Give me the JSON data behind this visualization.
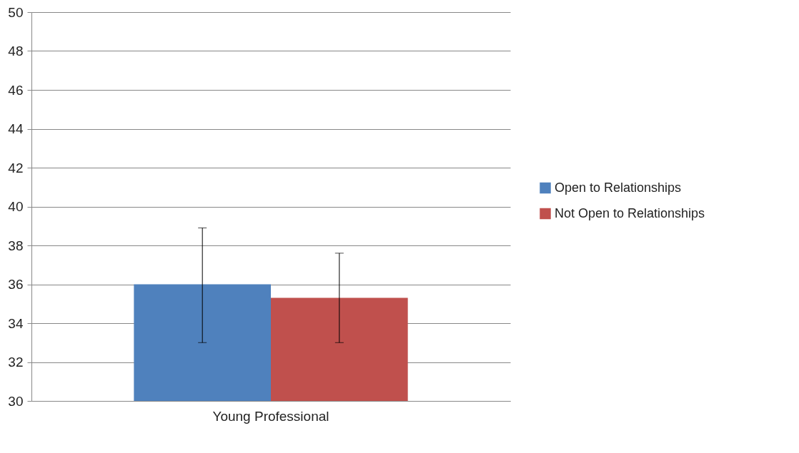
{
  "chart_data": {
    "type": "bar",
    "categories": [
      "Young Professional"
    ],
    "series": [
      {
        "name": "Open to Relationships",
        "color": "#4f81bd",
        "values": [
          36.0
        ],
        "errors": [
          [
            33.0,
            38.9
          ]
        ]
      },
      {
        "name": "Not Open to Relationships",
        "color": "#c0504d",
        "values": [
          35.3
        ],
        "errors": [
          [
            33.0,
            37.6
          ]
        ]
      }
    ],
    "ylim": [
      30,
      50
    ],
    "yticks": [
      30,
      32,
      34,
      36,
      38,
      40,
      42,
      44,
      46,
      48,
      50
    ],
    "grid": "y",
    "legend": "right"
  }
}
